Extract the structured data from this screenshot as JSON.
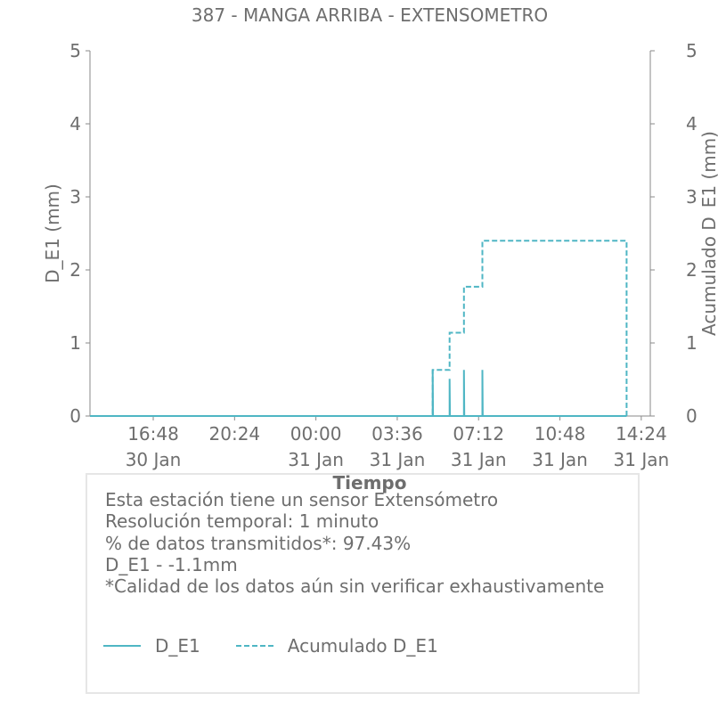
{
  "chart_data": {
    "type": "line",
    "title": "387 - MANGA ARRIBA - EXTENSOMETRO",
    "xlabel": "Tiempo",
    "ylabel": "D_E1 (mm)",
    "ylabel_right": "Acumulado D_E1 (mm)",
    "xlim": [
      "2024-01-30 14:00",
      "2024-01-31 14:48"
    ],
    "ylim": [
      0,
      5
    ],
    "ylim_right": [
      0,
      5
    ],
    "yticks": [
      0,
      1,
      2,
      3,
      4,
      5
    ],
    "x_ticks": [
      {
        "x": "2024-01-30 16:48",
        "time": "16:48",
        "date": "30 Jan"
      },
      {
        "x": "2024-01-30 20:24",
        "time": "20:24",
        "date": ""
      },
      {
        "x": "2024-01-31 00:00",
        "time": "00:00",
        "date": "31 Jan"
      },
      {
        "x": "2024-01-31 03:36",
        "time": "03:36",
        "date": "31 Jan"
      },
      {
        "x": "2024-01-31 07:12",
        "time": "07:12",
        "date": "31 Jan"
      },
      {
        "x": "2024-01-31 10:48",
        "time": "10:48",
        "date": "31 Jan"
      },
      {
        "x": "2024-01-31 14:24",
        "time": "14:24",
        "date": "31 Jan"
      }
    ],
    "grid": false,
    "legend_position": "bottom",
    "series": [
      {
        "name": "D_E1",
        "style": "solid",
        "color": "#4fb6c4",
        "points": [
          {
            "x": "2024-01-30 14:00",
            "y": 0
          },
          {
            "x": "2024-01-31 05:10",
            "y": 0
          },
          {
            "x": "2024-01-31 05:10",
            "y": 0.63
          },
          {
            "x": "2024-01-31 05:11",
            "y": 0
          },
          {
            "x": "2024-01-31 05:55",
            "y": 0
          },
          {
            "x": "2024-01-31 05:55",
            "y": 0.51
          },
          {
            "x": "2024-01-31 05:56",
            "y": 0
          },
          {
            "x": "2024-01-31 06:33",
            "y": 0
          },
          {
            "x": "2024-01-31 06:33",
            "y": 0.63
          },
          {
            "x": "2024-01-31 06:34",
            "y": 0
          },
          {
            "x": "2024-01-31 07:22",
            "y": 0
          },
          {
            "x": "2024-01-31 07:22",
            "y": 0.63
          },
          {
            "x": "2024-01-31 07:23",
            "y": 0
          },
          {
            "x": "2024-01-31 13:45",
            "y": 0
          }
        ]
      },
      {
        "name": "Acumulado D_E1",
        "style": "dashed",
        "color": "#4fb6c4",
        "points": [
          {
            "x": "2024-01-30 14:00",
            "y": 0
          },
          {
            "x": "2024-01-31 05:10",
            "y": 0
          },
          {
            "x": "2024-01-31 05:10",
            "y": 0.63
          },
          {
            "x": "2024-01-31 05:55",
            "y": 0.63
          },
          {
            "x": "2024-01-31 05:55",
            "y": 1.14
          },
          {
            "x": "2024-01-31 06:33",
            "y": 1.14
          },
          {
            "x": "2024-01-31 06:33",
            "y": 1.77
          },
          {
            "x": "2024-01-31 07:22",
            "y": 1.77
          },
          {
            "x": "2024-01-31 07:22",
            "y": 2.4
          },
          {
            "x": "2024-01-31 13:45",
            "y": 2.4
          },
          {
            "x": "2024-01-31 13:45",
            "y": 0
          }
        ]
      }
    ]
  },
  "info": {
    "line1": "Esta estación tiene un sensor Extensómetro",
    "line2": "Resolución temporal: 1 minuto",
    "line3": "% de datos transmitidos*: 97.43%",
    "line4": "D_E1 - -1.1mm",
    "line5": "*Calidad de los datos aún sin verificar exhaustivamente"
  },
  "legend": {
    "item1": "D_E1",
    "item2": "Acumulado D_E1"
  },
  "colors": {
    "series": "#4fb6c4",
    "text": "#6e6e6e",
    "axis": "#8a8a8a",
    "box_border": "#e6e6e6"
  }
}
